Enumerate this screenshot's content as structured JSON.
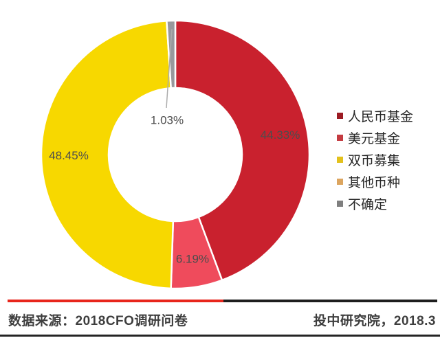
{
  "chart_data": {
    "type": "donut",
    "title": "",
    "slices": [
      {
        "name": "人民币基金",
        "value": 44.33,
        "label": "44.33%",
        "color": "#C9212E"
      },
      {
        "name": "美元基金",
        "value": 6.19,
        "label": "6.19%",
        "color": "#EF4B5C"
      },
      {
        "name": "双币募集",
        "value": 48.45,
        "label": "48.45%",
        "color": "#F7D800"
      },
      {
        "name": "其他币种",
        "value": 0,
        "label": "",
        "color": "#DCA55F"
      },
      {
        "name": "不确定",
        "value": 1.03,
        "label": "1.03%",
        "color": "#98989C",
        "callout": true
      }
    ],
    "legend": [
      {
        "label": "人民币基金",
        "color": "#9C1B23"
      },
      {
        "label": "美元基金",
        "color": "#C43B41"
      },
      {
        "label": "双币募集",
        "color": "#E3C11C"
      },
      {
        "label": "其他币种",
        "color": "#DCA55F"
      },
      {
        "label": "不确定",
        "color": "#7F7F7F"
      }
    ],
    "legend_position": "right",
    "label_color": "#4D4D4D",
    "leader_line_color": "#ACACAC"
  },
  "footer": {
    "source_label": "数据来源：2018CFO调研问卷",
    "credit_label": "投中研究院，2018.3",
    "divider_red": "#E8261C",
    "divider_black": "#1E1E1E"
  }
}
